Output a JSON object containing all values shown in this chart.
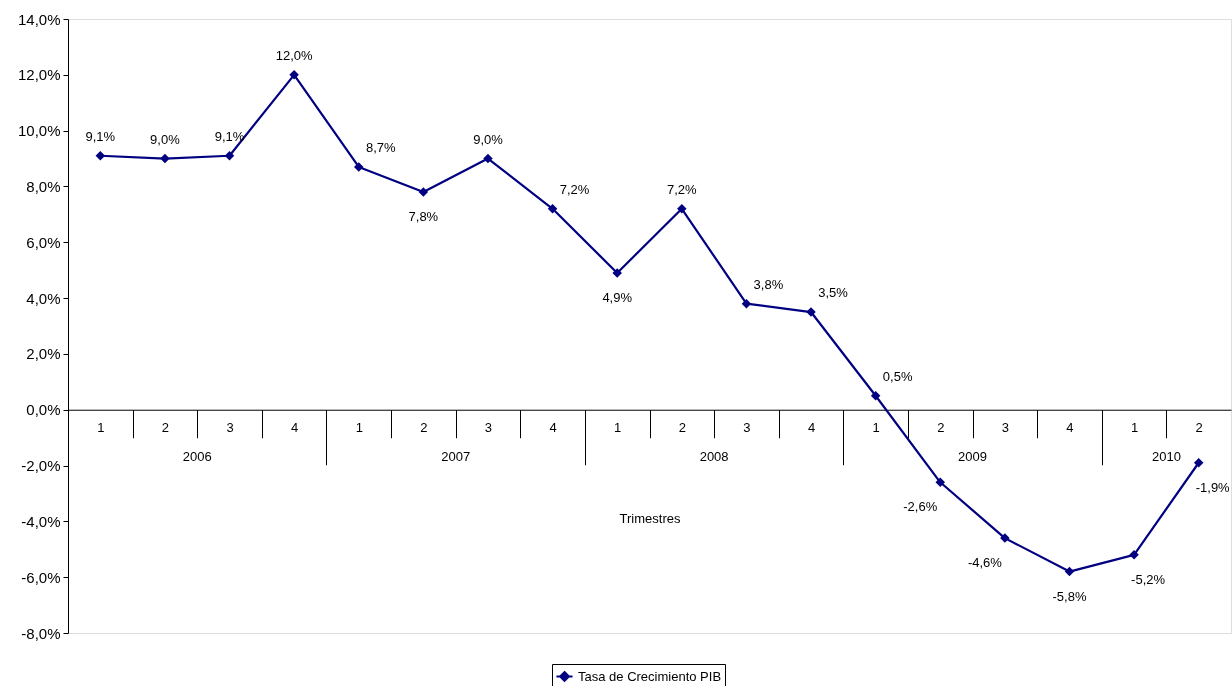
{
  "chart_data": {
    "type": "line",
    "xlabel": "Trimestres",
    "categories": [
      "1",
      "2",
      "3",
      "4",
      "1",
      "2",
      "3",
      "4",
      "1",
      "2",
      "3",
      "4",
      "1",
      "2",
      "3",
      "4",
      "1",
      "2"
    ],
    "series": [
      {
        "name": "Tasa de Crecimiento PIB",
        "color": "#000080",
        "values": [
          9.1,
          9.0,
          9.1,
          12.0,
          8.7,
          7.8,
          9.0,
          7.2,
          4.9,
          7.2,
          3.8,
          3.5,
          0.5,
          -2.6,
          -4.6,
          -5.8,
          -5.2,
          -1.9
        ],
        "value_labels": [
          "9,1%",
          "9,0%",
          "9,1%",
          "12,0%",
          "8,7%",
          "7,8%",
          "9,0%",
          "7,2%",
          "4,9%",
          "7,2%",
          "3,8%",
          "3,5%",
          "0,5%",
          "-2,6%",
          "-4,6%",
          "-5,8%",
          "-5,2%",
          "-1,9%"
        ]
      }
    ],
    "ylim": [
      -8,
      14
    ],
    "yticks": [
      {
        "value": -8,
        "label": "-8,0%"
      },
      {
        "value": -6,
        "label": "-6,0%"
      },
      {
        "value": -4,
        "label": "-4,0%"
      },
      {
        "value": -2,
        "label": "-2,0%"
      },
      {
        "value": 0,
        "label": "0,0%"
      },
      {
        "value": 2,
        "label": "2,0%"
      },
      {
        "value": 4,
        "label": "4,0%"
      },
      {
        "value": 6,
        "label": "6,0%"
      },
      {
        "value": 8,
        "label": "8,0%"
      },
      {
        "value": 10,
        "label": "10,0%"
      },
      {
        "value": 12,
        "label": "12,0%"
      },
      {
        "value": 14,
        "label": "14,0%"
      }
    ],
    "marker": "diamond",
    "line_style": "solid",
    "legend": "bottom",
    "grid": false,
    "annotations": [
      "2006",
      "2007",
      "2008",
      "2009",
      "2010"
    ]
  }
}
